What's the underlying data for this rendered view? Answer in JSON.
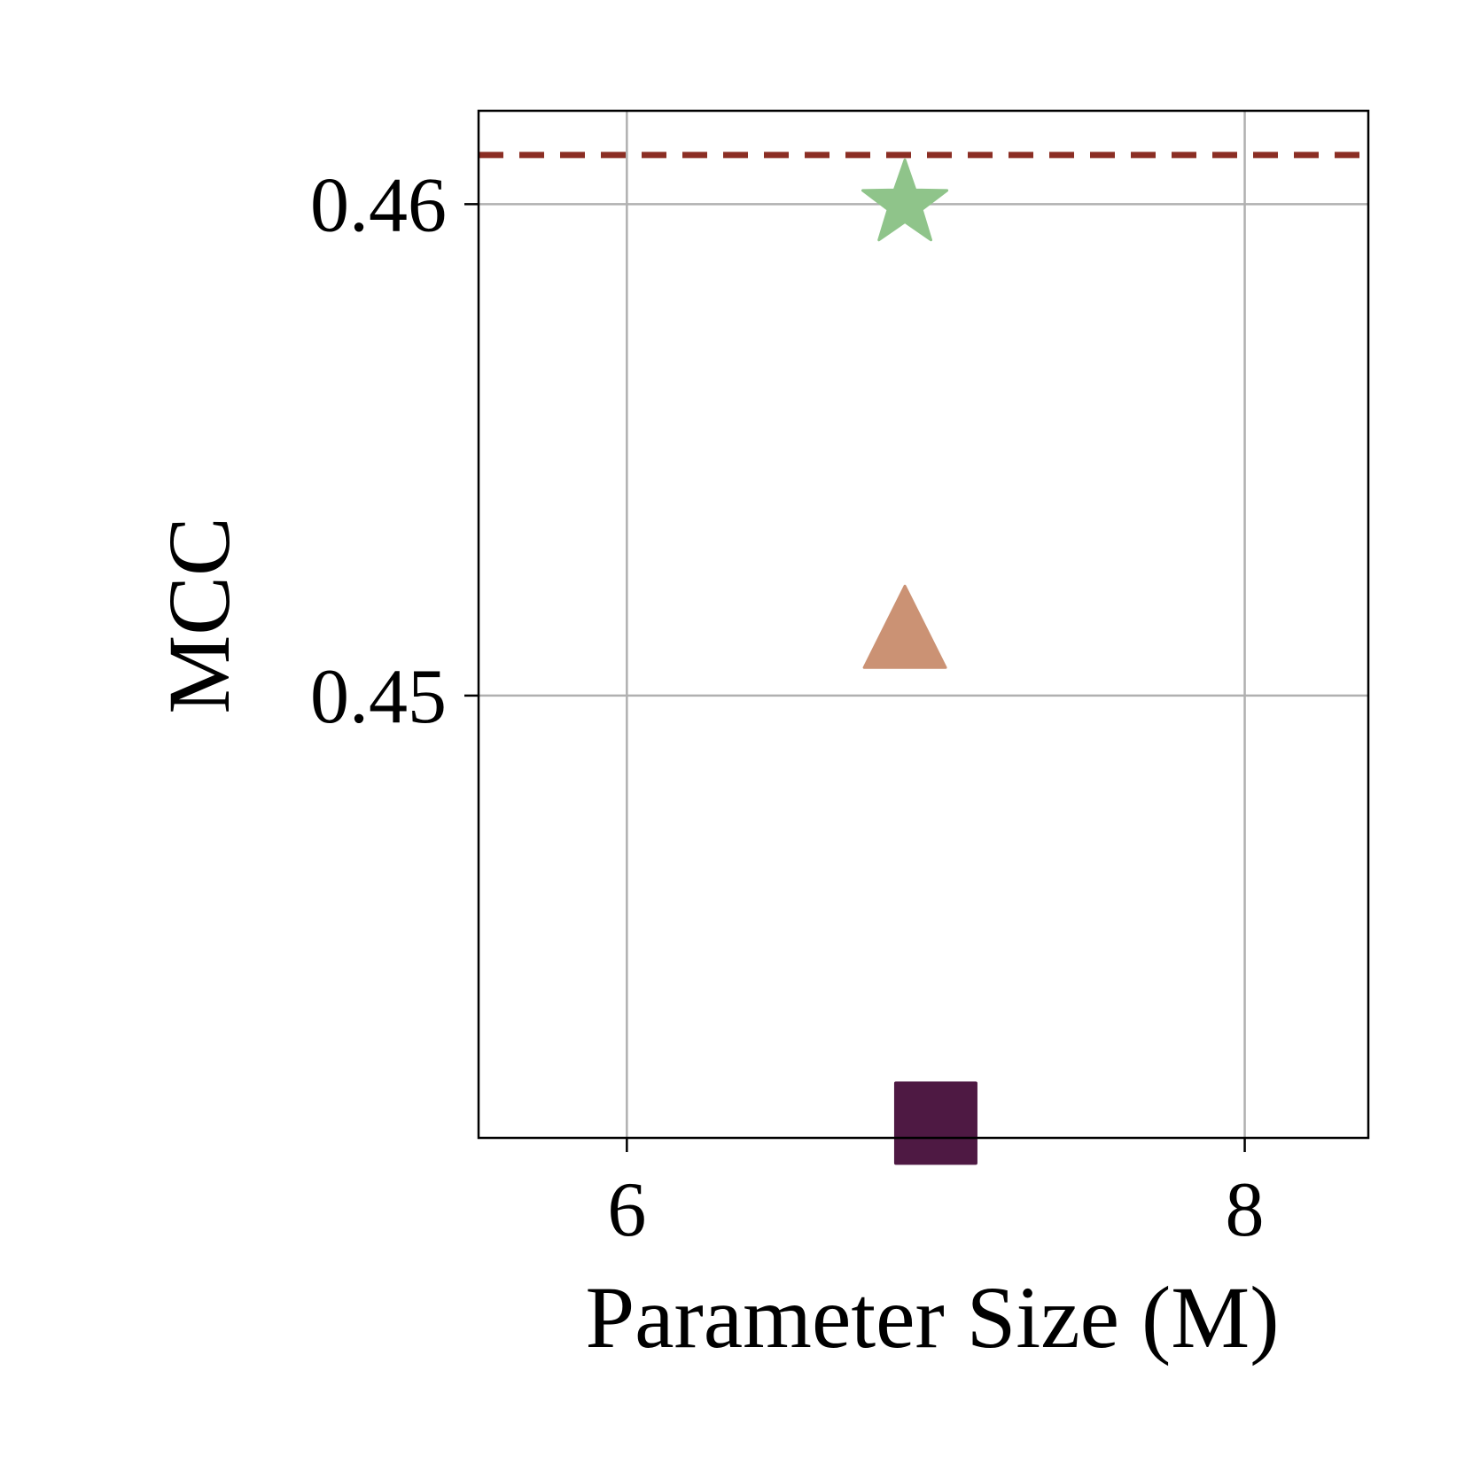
{
  "chart_data": {
    "type": "scatter",
    "xlabel": "Parameter Size (M)",
    "ylabel": "MCC",
    "xlim": [
      5.52,
      8.4
    ],
    "ylim": [
      0.441,
      0.4619
    ],
    "xticks": [
      6,
      8
    ],
    "yticks": [
      0.45,
      0.46
    ],
    "xtick_labels": [
      "6",
      "8"
    ],
    "ytick_labels": [
      "0.45",
      "0.46"
    ],
    "grid": true,
    "reference_line": {
      "y": 0.461,
      "color": "#8B2E24",
      "style": "dashed"
    },
    "points": [
      {
        "x": 6.9,
        "y": 0.46,
        "marker": "star",
        "color": "#8FC48A"
      },
      {
        "x": 6.9,
        "y": 0.4514,
        "marker": "triangle",
        "color": "#CB9274"
      },
      {
        "x": 7.0,
        "y": 0.4413,
        "marker": "square",
        "color": "#4E1943"
      }
    ]
  }
}
